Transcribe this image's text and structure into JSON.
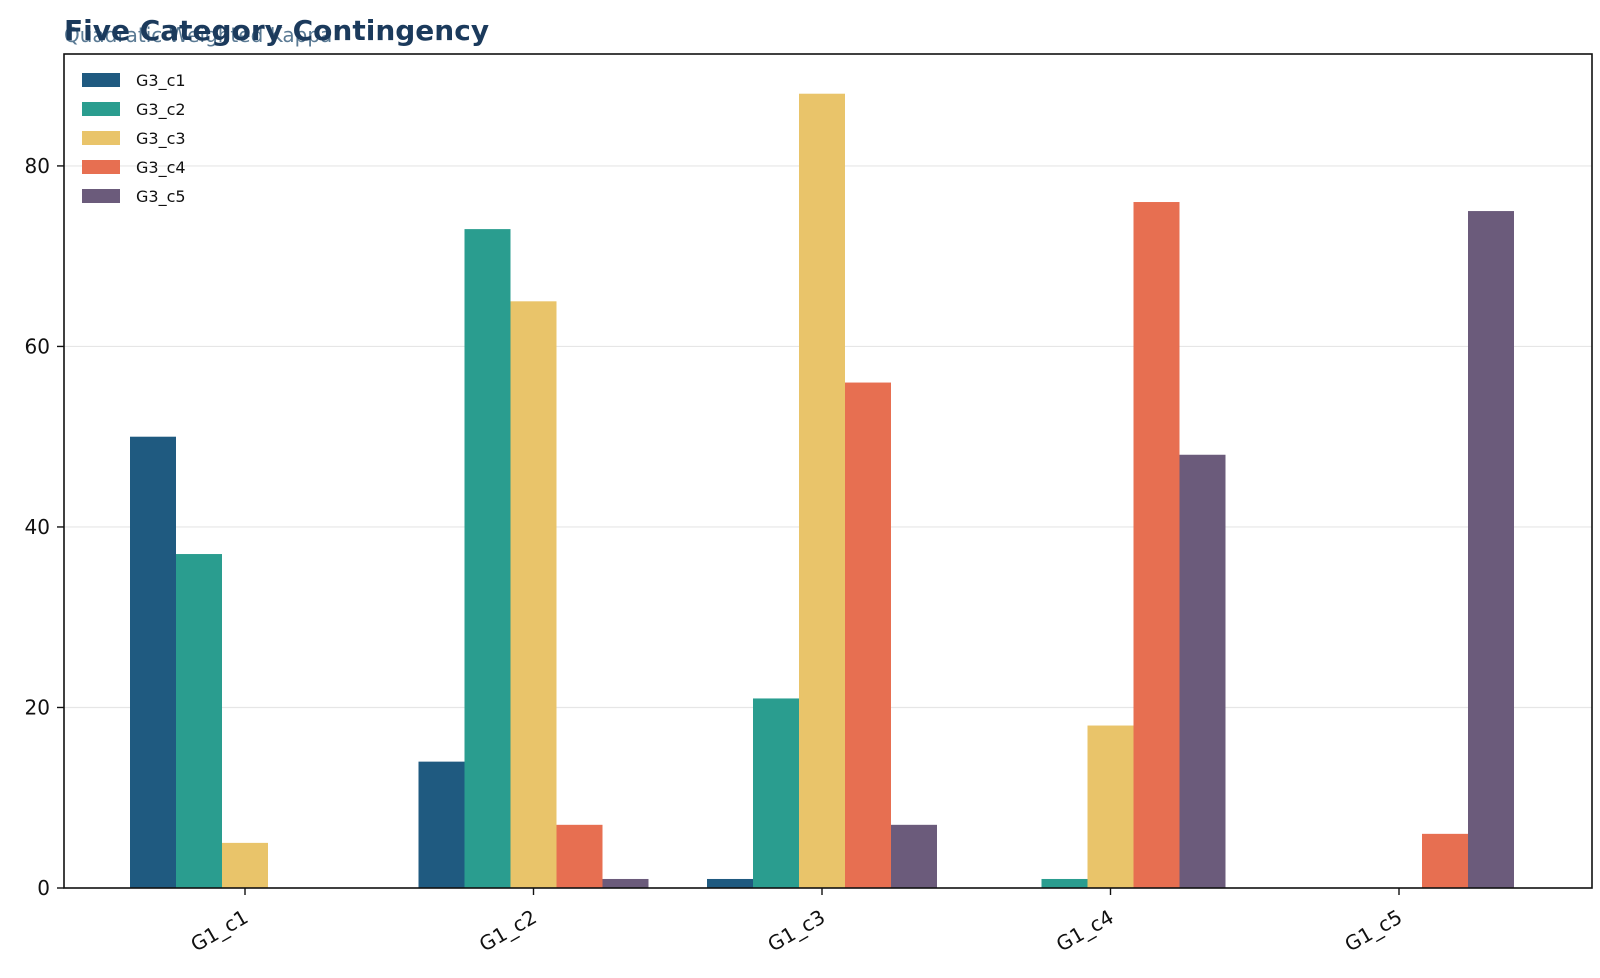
{
  "chart_data": {
    "type": "bar",
    "title": "Five Category Contingency",
    "subtitle": "Quadratic Weighted Kappa",
    "xlabel": "",
    "ylabel": "",
    "categories": [
      "G1_c1",
      "G1_c2",
      "G1_c3",
      "G1_c4",
      "G1_c5"
    ],
    "series": [
      {
        "name": "G3_c1",
        "color": "#1f5a80",
        "values": [
          50,
          14,
          1,
          0,
          0
        ]
      },
      {
        "name": "G3_c2",
        "color": "#2a9d8f",
        "values": [
          37,
          73,
          21,
          1,
          0
        ]
      },
      {
        "name": "G3_c3",
        "color": "#e9c46a",
        "values": [
          5,
          65,
          88,
          18,
          0
        ]
      },
      {
        "name": "G3_c4",
        "color": "#e76f51",
        "values": [
          0,
          7,
          56,
          76,
          6
        ]
      },
      {
        "name": "G3_c5",
        "color": "#6b5b7b",
        "values": [
          0,
          1,
          7,
          48,
          75
        ]
      }
    ],
    "ylim": [
      0,
      92.4
    ],
    "yticks": [
      0,
      20,
      40,
      60,
      80
    ],
    "grid": "horizontal",
    "legend": "top-left"
  }
}
